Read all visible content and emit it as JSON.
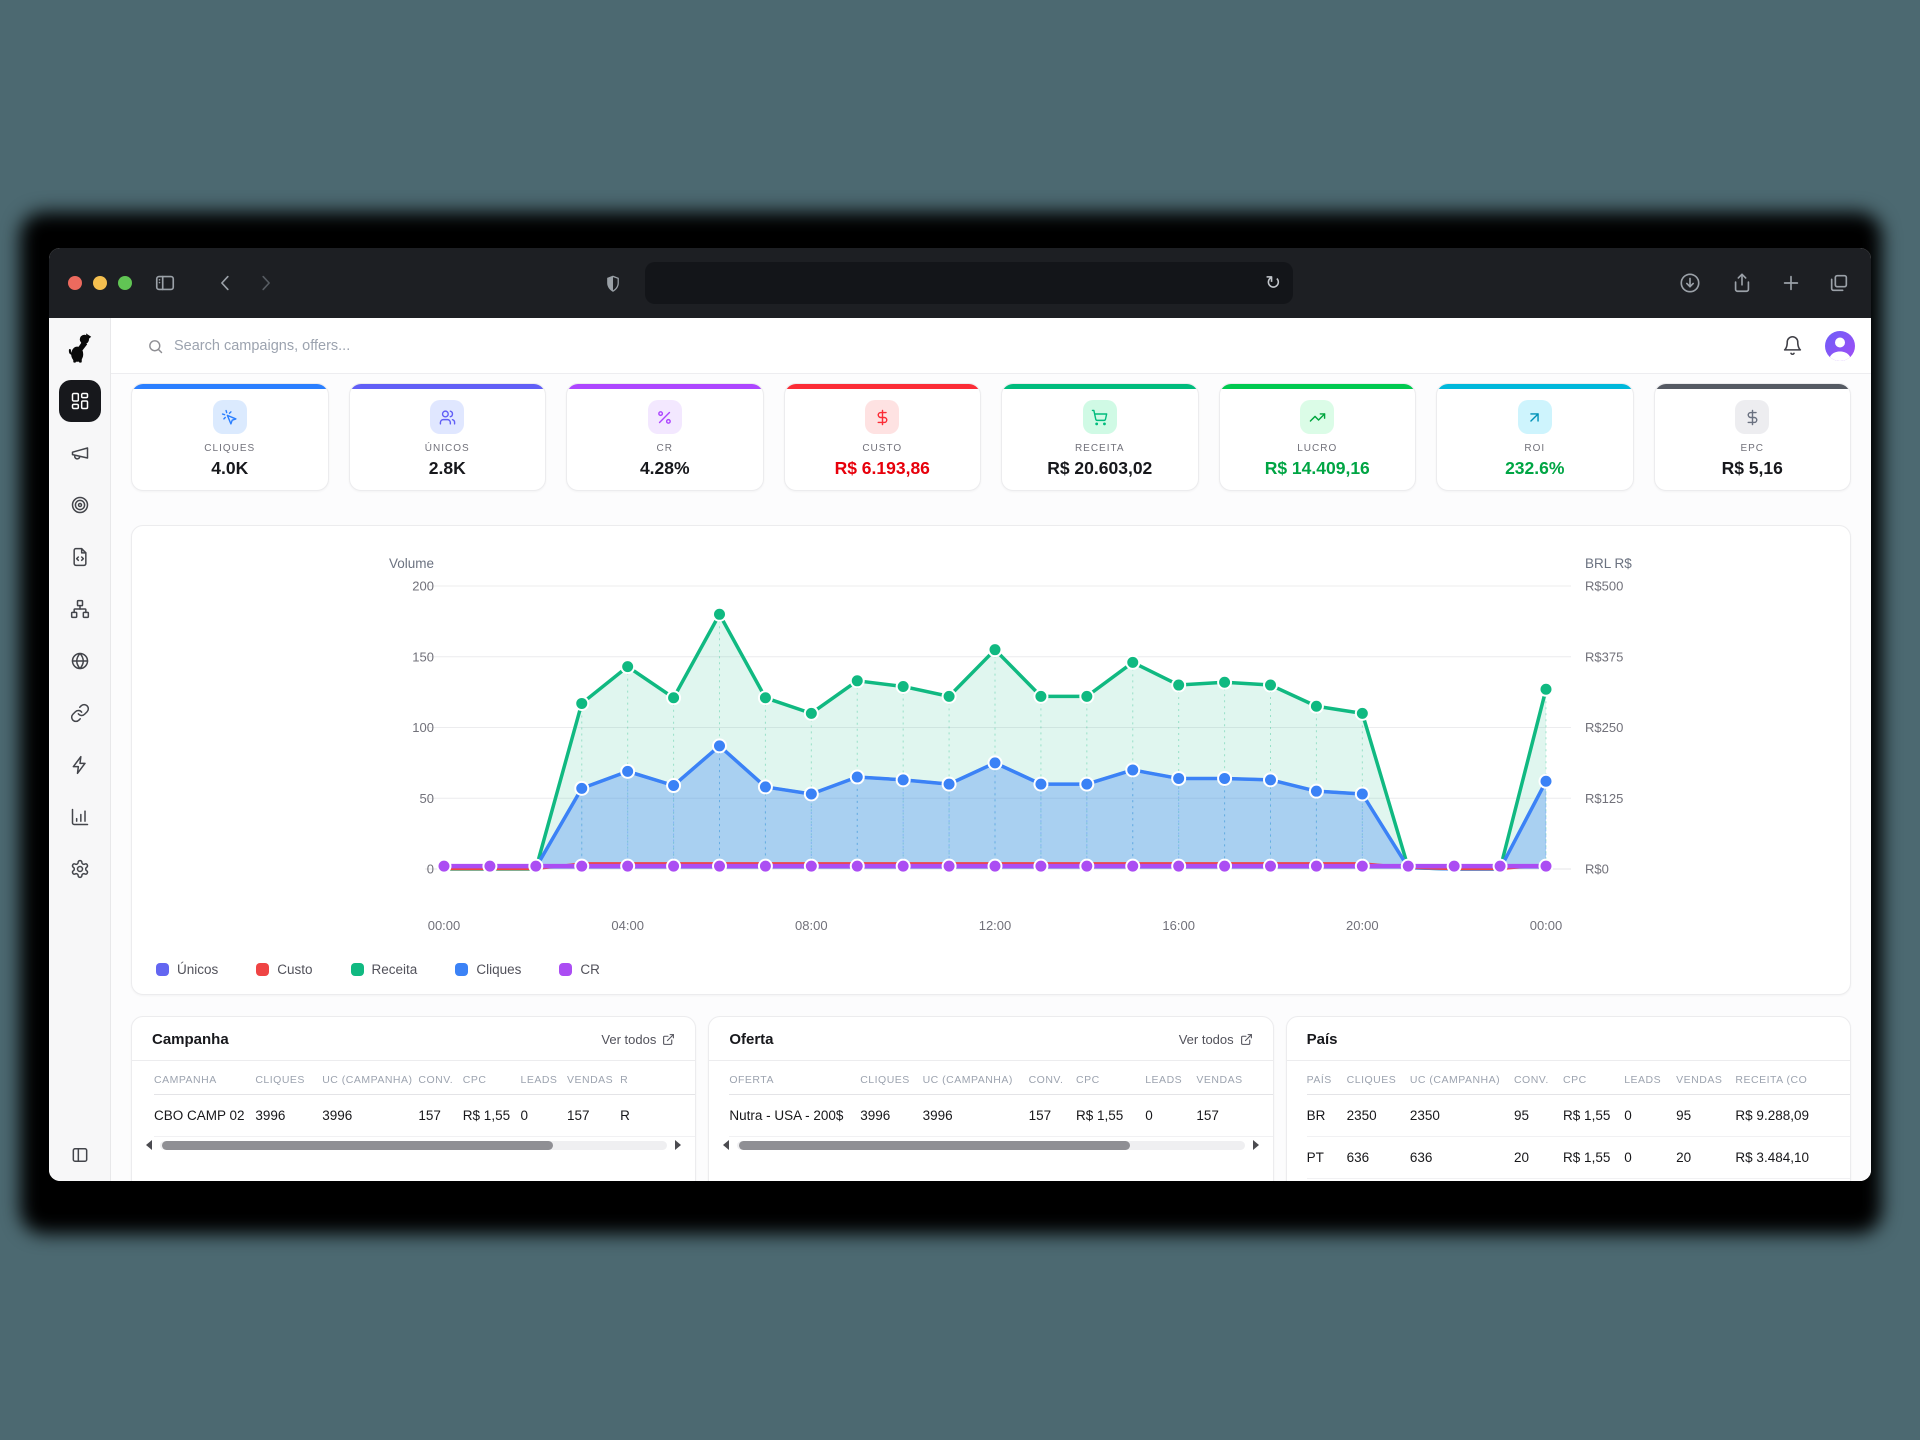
{
  "browser": {
    "url_value": ""
  },
  "app": {
    "search_placeholder": "Search campaigns, offers...",
    "sidebar": {
      "logo": "dog-logo",
      "items": [
        {
          "icon": "dashboard-grid-icon",
          "active": true
        },
        {
          "icon": "megaphone-icon",
          "active": false
        },
        {
          "icon": "target-icon",
          "active": false
        },
        {
          "icon": "file-code-icon",
          "active": false
        },
        {
          "icon": "sitemap-icon",
          "active": false
        },
        {
          "icon": "globe-icon",
          "active": false
        },
        {
          "icon": "link-icon",
          "active": false
        },
        {
          "icon": "lightning-icon",
          "active": false
        },
        {
          "icon": "bar-chart-icon",
          "active": false
        },
        {
          "icon": "gear-icon",
          "active": false
        }
      ],
      "footer_icon": "panel-left-icon"
    },
    "kpis": [
      {
        "label": "CLIQUES",
        "value": "4.0K",
        "icon": "cursor-click-icon",
        "accent": "#2b7fff",
        "chip_bg": "#dbeafe",
        "icon_color": "#2b7fff",
        "value_color": "#17181c"
      },
      {
        "label": "ÚNICOS",
        "value": "2.8K",
        "icon": "users-icon",
        "accent": "#615ff6",
        "chip_bg": "#e0e7ff",
        "icon_color": "#615ff6",
        "value_color": "#17181c"
      },
      {
        "label": "CR",
        "value": "4.28%",
        "icon": "percent-icon",
        "accent": "#ad46ff",
        "chip_bg": "#f3e8ff",
        "icon_color": "#ad46ff",
        "value_color": "#17181c"
      },
      {
        "label": "CUSTO",
        "value": "R$ 6.193,86",
        "icon": "dollar-icon",
        "accent": "#fb2c36",
        "chip_bg": "#fee2e2",
        "icon_color": "#fb2c36",
        "value_color": "#e7000b"
      },
      {
        "label": "RECEITA",
        "value": "R$ 20.603,02",
        "icon": "cart-icon",
        "accent": "#00bc7d",
        "chip_bg": "#d0fae5",
        "icon_color": "#00bc7d",
        "value_color": "#17181c"
      },
      {
        "label": "LUCRO",
        "value": "R$ 14.409,16",
        "icon": "trend-up-icon",
        "accent": "#00c950",
        "chip_bg": "#dbfce7",
        "icon_color": "#00a63e",
        "value_color": "#00a544"
      },
      {
        "label": "ROI",
        "value": "232.6%",
        "icon": "arrow-up-right-icon",
        "accent": "#00b8db",
        "chip_bg": "#cef4fd",
        "icon_color": "#0092b8",
        "value_color": "#00a544"
      },
      {
        "label": "EPC",
        "value": "R$ 5,16",
        "icon": "dollar-icon",
        "accent": "#555a63",
        "chip_bg": "#ededf0",
        "icon_color": "#6a7180",
        "value_color": "#17181c"
      }
    ],
    "chart_data": {
      "type": "area",
      "ylabel_left": "Volume",
      "ylabel_right": "BRL R$",
      "ylim": [
        0,
        200
      ],
      "yticks_left": [
        0,
        50,
        100,
        150,
        200
      ],
      "yticks_right": [
        "R$0",
        "R$125",
        "R$250",
        "R$375",
        "R$500"
      ],
      "grid": true,
      "legend_position": "bottom-left",
      "x_hours": [
        0,
        1,
        2,
        3,
        4,
        5,
        6,
        7,
        8,
        9,
        10,
        11,
        12,
        13,
        14,
        15,
        16,
        17,
        18,
        19,
        20,
        21,
        22,
        23,
        24
      ],
      "xtick_positions": [
        0,
        4,
        8,
        12,
        16,
        20,
        24
      ],
      "xtick_labels": [
        "00:00",
        "04:00",
        "08:00",
        "12:00",
        "16:00",
        "20:00",
        "00:00"
      ],
      "series": [
        {
          "name": "Únicos",
          "color": "#6366f1",
          "markers": "none",
          "values": [
            1,
            1,
            1,
            57,
            69,
            59,
            87,
            58,
            53,
            65,
            63,
            60,
            75,
            60,
            60,
            70,
            64,
            64,
            63,
            55,
            53,
            1,
            0,
            0,
            62
          ]
        },
        {
          "name": "Custo",
          "color": "#ef4444",
          "markers": "none",
          "values": [
            0,
            0,
            0,
            4,
            4,
            4,
            4,
            4,
            4,
            4,
            4,
            4,
            4,
            4,
            4,
            4,
            4,
            4,
            4,
            4,
            4,
            1,
            0,
            0,
            3
          ]
        },
        {
          "name": "Receita",
          "color": "#10b981",
          "fill": "rgba(16,185,129,0.13)",
          "markers": "above5",
          "values": [
            0,
            0,
            0,
            117,
            143,
            121,
            180,
            121,
            110,
            133,
            129,
            122,
            155,
            122,
            122,
            146,
            130,
            132,
            130,
            115,
            110,
            1,
            0,
            0,
            127
          ]
        },
        {
          "name": "Cliques",
          "color": "#3b82f6",
          "fill": "rgba(59,130,246,0.33)",
          "markers": "above5",
          "values": [
            1,
            1,
            1,
            57,
            69,
            59,
            87,
            58,
            53,
            65,
            63,
            60,
            75,
            60,
            60,
            70,
            64,
            64,
            63,
            55,
            53,
            1,
            0,
            0,
            62
          ]
        },
        {
          "name": "CR",
          "color": "#ab4df3",
          "markers": "all",
          "values": [
            2,
            2,
            2,
            2,
            2,
            2,
            2,
            2,
            2,
            2,
            2,
            2,
            2,
            2,
            2,
            2,
            2,
            2,
            2,
            2,
            2,
            2,
            2,
            2,
            2
          ]
        }
      ]
    },
    "tables": [
      {
        "title": "Campanha",
        "link": "Ver todos",
        "columns": [
          "CAMPANHA",
          "CLIQUES",
          "UC (CAMPANHA)",
          "CONV.",
          "CPC",
          "LEADS",
          "VENDAS",
          "R"
        ],
        "rows": [
          [
            "CBO CAMP 02",
            "3996",
            "3996",
            "157",
            "R$ 1,55",
            "0",
            "157",
            "R"
          ]
        ],
        "scrollbar": true
      },
      {
        "title": "Oferta",
        "link": "Ver todos",
        "columns": [
          "OFERTA",
          "CLIQUES",
          "UC (CAMPANHA)",
          "CONV.",
          "CPC",
          "LEADS",
          "VENDAS"
        ],
        "rows": [
          [
            "Nutra - USA - 200$",
            "3996",
            "3996",
            "157",
            "R$ 1,55",
            "0",
            "157"
          ]
        ],
        "scrollbar": true
      },
      {
        "title": "País",
        "link": "",
        "columns": [
          "PAÍS",
          "CLIQUES",
          "UC (CAMPANHA)",
          "CONV.",
          "CPC",
          "LEADS",
          "VENDAS",
          "RECEITA (CO"
        ],
        "rows": [
          [
            "BR",
            "2350",
            "2350",
            "95",
            "R$ 1,55",
            "0",
            "95",
            "R$ 9.288,09"
          ],
          [
            "PT",
            "636",
            "636",
            "20",
            "R$ 1,55",
            "0",
            "20",
            "R$ 3.484,10"
          ]
        ],
        "scrollbar": false
      }
    ]
  }
}
